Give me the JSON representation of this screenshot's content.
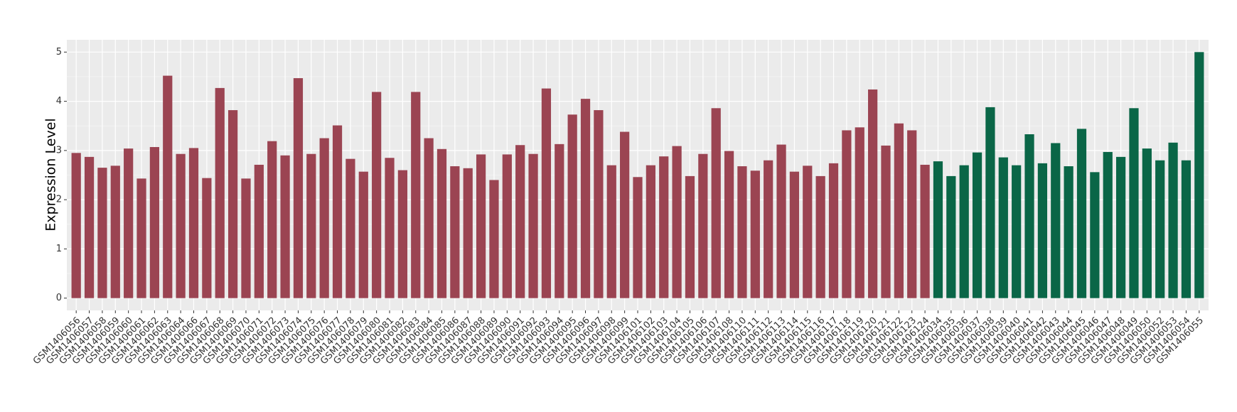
{
  "chart_data": {
    "type": "bar",
    "y_label": "Expression Level",
    "categories": [
      "GSM1406056",
      "GSM1406057",
      "GSM1406058",
      "GSM1406059",
      "GSM1406060",
      "GSM1406061",
      "GSM1406062",
      "GSM1406063",
      "GSM1406064",
      "GSM1406066",
      "GSM1406067",
      "GSM1406068",
      "GSM1406069",
      "GSM1406070",
      "GSM1406071",
      "GSM1406072",
      "GSM1406073",
      "GSM1406074",
      "GSM1406075",
      "GSM1406076",
      "GSM1406077",
      "GSM1406078",
      "GSM1406079",
      "GSM1406080",
      "GSM1406081",
      "GSM1406082",
      "GSM1406083",
      "GSM1406084",
      "GSM1406085",
      "GSM1406086",
      "GSM1406087",
      "GSM1406088",
      "GSM1406089",
      "GSM1406090",
      "GSM1406091",
      "GSM1406092",
      "GSM1406093",
      "GSM1406094",
      "GSM1406095",
      "GSM1406096",
      "GSM1406097",
      "GSM1406098",
      "GSM1406099",
      "GSM1406101",
      "GSM1406102",
      "GSM1406103",
      "GSM1406104",
      "GSM1406105",
      "GSM1406106",
      "GSM1406107",
      "GSM1406108",
      "GSM1406110",
      "GSM1406111",
      "GSM1406112",
      "GSM1406113",
      "GSM1406114",
      "GSM1406115",
      "GSM1406116",
      "GSM1406117",
      "GSM1406118",
      "GSM1406119",
      "GSM1406120",
      "GSM1406121",
      "GSM1406122",
      "GSM1406123",
      "GSM1406124",
      "GSM1406034",
      "GSM1406035",
      "GSM1406036",
      "GSM1406037",
      "GSM1406038",
      "GSM1406039",
      "GSM1406040",
      "GSM1406041",
      "GSM1406042",
      "GSM1406043",
      "GSM1406044",
      "GSM1406045",
      "GSM1406046",
      "GSM1406047",
      "GSM1406048",
      "GSM1406049",
      "GSM1406050",
      "GSM1406052",
      "GSM1406053",
      "GSM1406054",
      "GSM1406055"
    ],
    "series": [
      {
        "color": "#9b4452",
        "values": [
          2.95,
          2.87,
          2.65,
          2.69,
          3.04,
          2.43,
          3.07,
          4.52,
          2.93,
          3.05,
          2.44,
          4.27,
          3.82,
          2.43,
          2.71,
          3.19,
          2.9,
          4.47,
          2.93,
          3.25,
          3.51,
          2.83,
          2.57,
          4.19,
          2.85,
          2.6,
          4.19,
          3.25,
          3.03,
          2.68,
          2.64,
          2.92,
          2.4,
          2.92,
          3.11,
          2.93,
          4.26,
          3.13,
          3.73,
          4.05,
          3.82,
          2.7,
          3.38,
          2.46,
          2.7,
          2.88,
          3.09,
          2.48,
          2.93,
          3.86,
          2.99,
          2.68,
          2.59,
          2.8,
          3.12,
          2.57,
          2.69,
          2.48,
          2.74,
          3.41,
          3.47,
          4.24,
          3.1,
          3.55,
          3.41,
          2.71,
          null,
          null,
          null,
          null,
          null,
          null,
          null,
          null,
          null,
          null,
          null,
          null,
          null,
          null,
          null,
          null,
          null,
          null,
          null,
          null,
          null
        ]
      },
      {
        "color": "#0a6647",
        "values": [
          null,
          null,
          null,
          null,
          null,
          null,
          null,
          null,
          null,
          null,
          null,
          null,
          null,
          null,
          null,
          null,
          null,
          null,
          null,
          null,
          null,
          null,
          null,
          null,
          null,
          null,
          null,
          null,
          null,
          null,
          null,
          null,
          null,
          null,
          null,
          null,
          null,
          null,
          null,
          null,
          null,
          null,
          null,
          null,
          null,
          null,
          null,
          null,
          null,
          null,
          null,
          null,
          null,
          null,
          null,
          null,
          null,
          null,
          null,
          null,
          null,
          null,
          null,
          null,
          null,
          null,
          2.78,
          2.48,
          2.7,
          2.96,
          3.88,
          2.86,
          2.7,
          3.33,
          2.74,
          3.15,
          2.68,
          3.44,
          2.56,
          2.97,
          2.87,
          3.86,
          3.04,
          2.8,
          3.16,
          2.8,
          5.0
        ]
      }
    ],
    "ylim": [
      -0.25,
      5.25
    ],
    "yticks": [
      0,
      1,
      2,
      3,
      4,
      5
    ],
    "grid": true
  }
}
